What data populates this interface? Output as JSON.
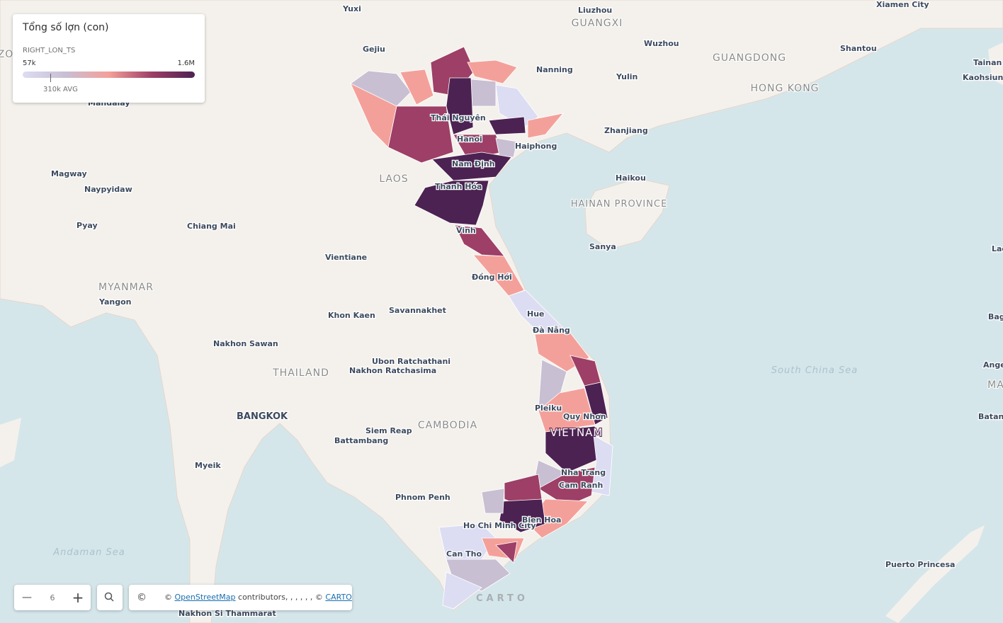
{
  "legend": {
    "title": "Tổng số lợn (con)",
    "field": "RIGHT_LON_TS",
    "min_label": "57k",
    "max_label": "1.6M",
    "avg_label": "310k AVG"
  },
  "map_labels": {
    "cities": [
      "Yuxi",
      "Liuzhou",
      "Xiamen City",
      "Gejiu",
      "Wuzhou",
      "Shantou",
      "Tainan",
      "Kaohsiung",
      "Nanning",
      "Yulin",
      "Thái Nguyên",
      "Hanoi",
      "Haiphong",
      "Zhanjiang",
      "Mandalay",
      "Magway",
      "Naypyidaw",
      "Nam Định",
      "Haikou",
      "Thanh Hóa",
      "Pyay",
      "Chiang Mai",
      "Vinh",
      "Sanya",
      "Vientiane",
      "Đồng Hới",
      "Yangon",
      "Hue",
      "Khon Kaen",
      "Savannakhet",
      "Đà Nẵng",
      "Nakhon Sawan",
      "Ubon Ratchathani",
      "Nakhon Ratchasima",
      "Pleiku",
      "Quy Nhơn",
      "BANGKOK",
      "Siem Reap",
      "Battambang",
      "Myeik",
      "Nha Trang",
      "Cam Ranh",
      "Phnom Penh",
      "Ho Chi Minh City",
      "Bien Hoa",
      "Can Tho",
      "Puerto Princesa",
      "Nakhon Si Thammarat",
      "Lac",
      "Bag",
      "Ange",
      "Batang"
    ],
    "regions": [
      "GUANGXI",
      "GUANGDONG",
      "HONG KONG",
      "LAOS",
      "HAINAN PROVINCE",
      "MYANMAR",
      "THAILAND",
      "CAMBODIA",
      "VIETNAM",
      "MA",
      "ZO"
    ],
    "seas": [
      "South China Sea",
      "Andaman Sea"
    ]
  },
  "controls": {
    "zoom_out": "—",
    "zoom_level": "6",
    "zoom_in": "+",
    "attribution_icon": "©",
    "attribution_prefix": "©",
    "osm_link": "OpenStreetMap",
    "attribution_middle": "contributors, , , , , , ©",
    "carto_link": "CARTO",
    "watermark": "CARTO"
  }
}
